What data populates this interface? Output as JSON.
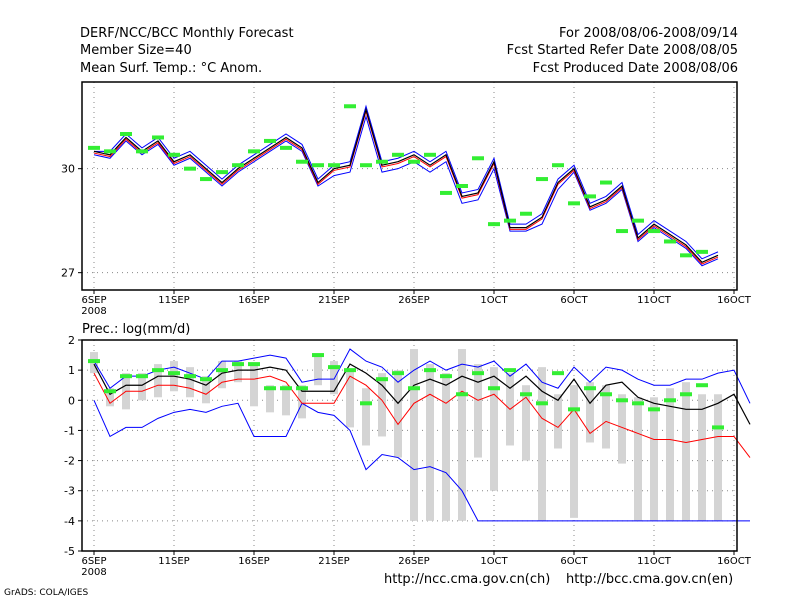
{
  "header": {
    "title": "DERF/NCC/BCC Monthly Forecast",
    "member_size": "Member Size=40",
    "variable": "Mean Surf. Temp.: °C Anom.",
    "period": "For 2008/08/06-2008/09/14",
    "started": "Fcst Started Refer Date 2008/08/05",
    "produced": "Fcst Produced Date 2008/08/06"
  },
  "footer": {
    "url_ch": "http://ncc.cma.gov.cn(ch)",
    "url_en": "http://bcc.cma.gov.cn(en)",
    "grads": "GrADS: COLA/IGES"
  },
  "colors": {
    "ensemble_mean": "#000000",
    "upper_envelope": "#0000ff",
    "inner_band": "#ff0000",
    "observed_marker": "#33ee33",
    "member_spread_bar": "#d4d4d4",
    "grid": "#888888"
  },
  "chart_data": [
    {
      "id": "temperature",
      "type": "line",
      "ylabel": "",
      "ylim": [
        26.5,
        32.5
      ],
      "yticks": [
        27,
        30
      ],
      "xlim": [
        0,
        40
      ],
      "xticks": [
        {
          "day": 0,
          "label": "6SEP",
          "sublabel": "2008"
        },
        {
          "day": 5,
          "label": "11SEP"
        },
        {
          "day": 10,
          "label": "16SEP"
        },
        {
          "day": 15,
          "label": "21SEP"
        },
        {
          "day": 20,
          "label": "26SEP"
        },
        {
          "day": 25,
          "label": "1OCT"
        },
        {
          "day": 30,
          "label": "6OCT"
        },
        {
          "day": 35,
          "label": "11OCT"
        },
        {
          "day": 40,
          "label": "16OCT"
        }
      ],
      "series": [
        {
          "name": "mean",
          "values": [
            30.5,
            30.4,
            30.9,
            30.5,
            30.8,
            30.2,
            30.4,
            30.0,
            29.6,
            30.0,
            30.3,
            30.6,
            30.9,
            30.6,
            29.6,
            30.0,
            30.1,
            31.7,
            30.1,
            30.2,
            30.4,
            30.1,
            30.4,
            29.2,
            29.3,
            30.2,
            28.3,
            28.3,
            28.6,
            29.6,
            30.0,
            28.9,
            29.1,
            29.5,
            28.0,
            28.4,
            28.1,
            27.8,
            27.3,
            27.5
          ]
        },
        {
          "name": "upper",
          "values": [
            30.5,
            30.5,
            31.0,
            30.6,
            30.9,
            30.3,
            30.5,
            30.1,
            29.7,
            30.1,
            30.4,
            30.7,
            31.0,
            30.7,
            29.7,
            30.1,
            30.2,
            31.8,
            30.2,
            30.3,
            30.5,
            30.2,
            30.5,
            29.3,
            29.4,
            30.3,
            28.4,
            28.4,
            28.7,
            29.7,
            30.1,
            29.0,
            29.2,
            29.6,
            28.1,
            28.5,
            28.2,
            27.9,
            27.4,
            27.6
          ]
        },
        {
          "name": "lower",
          "values": [
            30.4,
            30.3,
            30.8,
            30.4,
            30.7,
            30.1,
            30.3,
            29.9,
            29.5,
            29.9,
            30.2,
            30.5,
            30.8,
            30.5,
            29.5,
            29.8,
            29.9,
            31.5,
            29.9,
            30.0,
            30.2,
            29.9,
            30.2,
            29.0,
            29.1,
            30.0,
            28.2,
            28.2,
            28.4,
            29.4,
            29.9,
            28.8,
            29.0,
            29.4,
            27.9,
            28.3,
            28.0,
            27.7,
            27.2,
            27.4
          ]
        },
        {
          "name": "inner",
          "values": [
            30.45,
            30.35,
            30.85,
            30.45,
            30.75,
            30.15,
            30.35,
            29.95,
            29.55,
            29.95,
            30.25,
            30.55,
            30.85,
            30.55,
            29.55,
            29.95,
            30.05,
            31.65,
            30.05,
            30.15,
            30.35,
            30.05,
            30.35,
            29.15,
            29.25,
            30.15,
            28.25,
            28.25,
            28.55,
            29.55,
            29.95,
            28.85,
            29.05,
            29.45,
            27.95,
            28.35,
            28.05,
            27.75,
            27.25,
            27.45
          ]
        },
        {
          "name": "observed",
          "values": [
            30.6,
            30.5,
            31.0,
            30.5,
            30.9,
            30.4,
            30.0,
            29.7,
            29.9,
            30.1,
            30.5,
            30.8,
            30.6,
            30.2,
            30.1,
            30.1,
            31.8,
            30.1,
            30.2,
            30.4,
            30.2,
            30.4,
            29.3,
            29.5,
            30.3,
            28.4,
            28.5,
            28.7,
            29.7,
            30.1,
            29.0,
            29.2,
            29.6,
            28.2,
            28.5,
            28.2,
            27.9,
            27.5,
            27.6,
            null
          ]
        }
      ]
    },
    {
      "id": "precipitation",
      "type": "line",
      "title": "Prec.: log(mm/d)",
      "ylim": [
        -5,
        2
      ],
      "yticks": [
        2,
        1,
        0,
        -1,
        -2,
        -3,
        -4,
        -5
      ],
      "xlim": [
        0,
        40
      ],
      "xticks": [
        {
          "day": 0,
          "label": "6SEP",
          "sublabel": "2008"
        },
        {
          "day": 5,
          "label": "11SEP"
        },
        {
          "day": 10,
          "label": "16SEP"
        },
        {
          "day": 15,
          "label": "21SEP"
        },
        {
          "day": 20,
          "label": "26SEP"
        },
        {
          "day": 25,
          "label": "1OCT"
        },
        {
          "day": 30,
          "label": "6OCT"
        },
        {
          "day": 35,
          "label": "11OCT"
        },
        {
          "day": 40,
          "label": "16OCT"
        }
      ],
      "bars": {
        "name": "member spread",
        "top": [
          1.6,
          0.4,
          0.9,
          0.9,
          1.2,
          1.3,
          1.1,
          0.8,
          1.3,
          1.3,
          1.2,
          0.5,
          0.5,
          0.5,
          1.5,
          1.3,
          1.0,
          0.4,
          0.9,
          1.0,
          1.7,
          1.2,
          0.9,
          1.7,
          1.2,
          1.1,
          0.9,
          0.5,
          1.1,
          0.2,
          0.5,
          0.6,
          0.5,
          0.2,
          0.1,
          0.1,
          0.4,
          0.6,
          0.2,
          0.2
        ],
        "bottom": [
          0.9,
          -0.2,
          -0.3,
          0.0,
          0.1,
          0.3,
          0.1,
          -0.1,
          0.4,
          0.6,
          -0.2,
          -0.4,
          -0.5,
          -0.6,
          0.5,
          0.2,
          -0.9,
          -1.5,
          -1.2,
          -1.9,
          -4.0,
          -4.0,
          -4.0,
          -4.0,
          -1.9,
          -3.0,
          -1.5,
          -2.0,
          -4.0,
          -1.6,
          -3.9,
          -1.4,
          -1.6,
          -2.1,
          -4.0,
          -4.0,
          -4.0,
          -4.0,
          -4.0,
          -4.0
        ]
      },
      "series": [
        {
          "name": "upper",
          "values": [
            1.3,
            0.4,
            0.8,
            0.8,
            1.0,
            1.1,
            0.9,
            0.7,
            1.3,
            1.3,
            1.4,
            1.5,
            1.4,
            0.6,
            0.7,
            0.7,
            1.7,
            1.3,
            1.1,
            0.6,
            1.0,
            1.3,
            1.0,
            1.2,
            1.1,
            1.3,
            0.8,
            1.2,
            0.6,
            0.4,
            1.1,
            0.6,
            1.1,
            1.0,
            0.7,
            0.5,
            0.5,
            0.7,
            0.7,
            0.9,
            1.0,
            -0.1
          ]
        },
        {
          "name": "mean",
          "values": [
            1.2,
            0.2,
            0.5,
            0.5,
            0.8,
            0.8,
            0.7,
            0.5,
            0.9,
            1.0,
            1.0,
            1.1,
            1.0,
            0.3,
            0.3,
            0.3,
            1.2,
            0.9,
            0.5,
            -0.1,
            0.5,
            0.7,
            0.5,
            0.8,
            0.6,
            0.8,
            0.4,
            0.8,
            0.3,
            0.0,
            0.7,
            -0.1,
            0.5,
            0.6,
            0.1,
            -0.1,
            -0.2,
            -0.3,
            -0.3,
            -0.1,
            0.2,
            -0.8
          ]
        },
        {
          "name": "inner",
          "values": [
            0.9,
            -0.1,
            0.3,
            0.3,
            0.5,
            0.5,
            0.4,
            0.2,
            0.6,
            0.7,
            0.7,
            0.8,
            0.6,
            -0.1,
            -0.1,
            -0.1,
            0.8,
            0.5,
            0.0,
            -0.8,
            -0.1,
            0.2,
            -0.1,
            0.3,
            0.0,
            0.2,
            -0.3,
            0.1,
            -0.6,
            -0.9,
            -0.3,
            -1.1,
            -0.7,
            -0.9,
            -1.1,
            -1.3,
            -1.3,
            -1.4,
            -1.3,
            -1.2,
            -1.2,
            -1.9
          ]
        },
        {
          "name": "lower",
          "values": [
            0.0,
            -1.2,
            -0.9,
            -0.9,
            -0.6,
            -0.4,
            -0.3,
            -0.4,
            -0.2,
            -0.1,
            -1.2,
            -1.2,
            -1.2,
            -0.1,
            -0.4,
            -0.5,
            -1.0,
            -2.3,
            -1.8,
            -1.9,
            -2.3,
            -2.2,
            -2.4,
            -3.0,
            -4.0,
            -4.0,
            -4.0,
            -4.0,
            -4.0,
            -4.0,
            -4.0,
            -4.0,
            -4.0,
            -4.0,
            -4.0,
            -4.0,
            -4.0,
            -4.0,
            -4.0,
            -4.0,
            -4.0,
            -4.0
          ]
        },
        {
          "name": "observed",
          "values": [
            1.3,
            0.3,
            0.8,
            0.8,
            1.0,
            0.9,
            0.8,
            0.7,
            1.0,
            1.2,
            1.2,
            0.4,
            0.4,
            0.4,
            1.5,
            1.1,
            1.0,
            -0.1,
            0.7,
            0.9,
            0.4,
            1.0,
            0.8,
            0.2,
            0.9,
            0.4,
            1.0,
            0.2,
            -0.1,
            0.9,
            -0.3,
            0.4,
            0.2,
            0.0,
            -0.1,
            -0.3,
            0.0,
            0.2,
            0.5,
            -0.9
          ]
        }
      ]
    }
  ]
}
